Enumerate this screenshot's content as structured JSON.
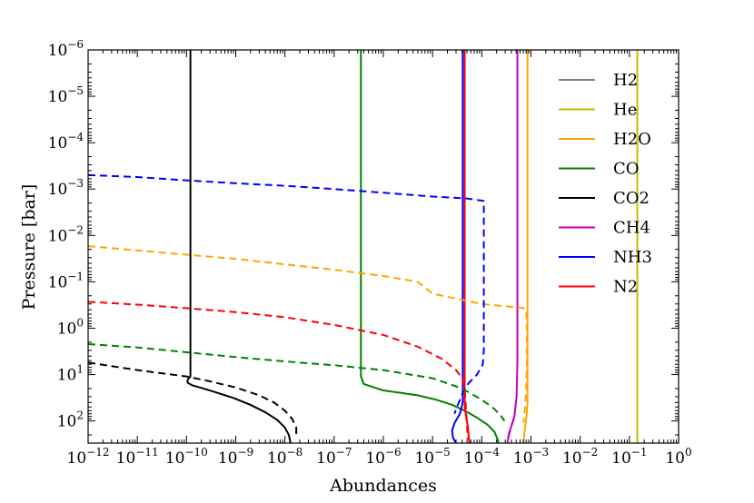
{
  "chart_data": {
    "type": "line",
    "xlabel": "Abundances",
    "ylabel": "Pressure [bar]",
    "x_scale": "log",
    "y_scale": "log",
    "y_inverted": true,
    "xlim": [
      1e-12,
      1
    ],
    "ylim": [
      1e-06,
      300
    ],
    "x_ticks": [
      {
        "base": "10",
        "exp": "−12",
        "value": 1e-12
      },
      {
        "base": "10",
        "exp": "−11",
        "value": 1e-11
      },
      {
        "base": "10",
        "exp": "−10",
        "value": 1e-10
      },
      {
        "base": "10",
        "exp": "−9",
        "value": 1e-09
      },
      {
        "base": "10",
        "exp": "−8",
        "value": 1e-08
      },
      {
        "base": "10",
        "exp": "−7",
        "value": 1e-07
      },
      {
        "base": "10",
        "exp": "−6",
        "value": 1e-06
      },
      {
        "base": "10",
        "exp": "−5",
        "value": 1e-05
      },
      {
        "base": "10",
        "exp": "−4",
        "value": 0.0001
      },
      {
        "base": "10",
        "exp": "−3",
        "value": 0.001
      },
      {
        "base": "10",
        "exp": "−2",
        "value": 0.01
      },
      {
        "base": "10",
        "exp": "−1",
        "value": 0.1
      },
      {
        "base": "10",
        "exp": "0",
        "value": 1
      }
    ],
    "y_ticks": [
      {
        "base": "10",
        "exp": "−6",
        "value": 1e-06
      },
      {
        "base": "10",
        "exp": "−5",
        "value": 1e-05
      },
      {
        "base": "10",
        "exp": "−4",
        "value": 0.0001
      },
      {
        "base": "10",
        "exp": "−3",
        "value": 0.001
      },
      {
        "base": "10",
        "exp": "−2",
        "value": 0.01
      },
      {
        "base": "10",
        "exp": "−1",
        "value": 0.1
      },
      {
        "base": "10",
        "exp": "0",
        "value": 1
      },
      {
        "base": "10",
        "exp": "1",
        "value": 10
      },
      {
        "base": "10",
        "exp": "2",
        "value": 100
      }
    ],
    "legend_position": "upper-right",
    "series": [
      {
        "name": "H2",
        "color": "#808080",
        "style": "solid",
        "in_legend": true,
        "points": []
      },
      {
        "name": "He",
        "color": "#bfbf00",
        "style": "solid",
        "in_legend": true,
        "points": [
          [
            0.145,
            1e-06
          ],
          [
            0.145,
            300
          ]
        ]
      },
      {
        "name": "H2O",
        "color": "#ffa500",
        "style": "solid",
        "in_legend": true,
        "points": [
          [
            0.00085,
            1e-06
          ],
          [
            0.00085,
            40
          ],
          [
            0.00082,
            70
          ],
          [
            0.00075,
            150
          ],
          [
            0.0007,
            300
          ]
        ]
      },
      {
        "name": "CO",
        "color": "#008000",
        "style": "solid",
        "in_legend": true,
        "points": [
          [
            3.5e-07,
            1e-06
          ],
          [
            3.5e-07,
            11
          ],
          [
            4e-07,
            16
          ],
          [
            1e-06,
            22
          ],
          [
            5e-06,
            28
          ],
          [
            1.2e-05,
            35
          ],
          [
            2.5e-05,
            45
          ],
          [
            4.5e-05,
            60
          ],
          [
            8e-05,
            85
          ],
          [
            0.00013,
            120
          ],
          [
            0.00018,
            170
          ],
          [
            0.00021,
            250
          ],
          [
            0.00022,
            300
          ]
        ]
      },
      {
        "name": "CO2",
        "color": "#000000",
        "style": "solid",
        "in_legend": true,
        "points": [
          [
            1.2e-10,
            1e-06
          ],
          [
            1.2e-10,
            11
          ],
          [
            1.05e-10,
            13
          ],
          [
            1.05e-10,
            15
          ],
          [
            1.3e-10,
            17
          ],
          [
            3e-10,
            22
          ],
          [
            9e-10,
            32
          ],
          [
            2e-09,
            45
          ],
          [
            4e-09,
            65
          ],
          [
            7e-09,
            95
          ],
          [
            1e-08,
            140
          ],
          [
            1.2e-08,
            200
          ],
          [
            1.3e-08,
            300
          ]
        ]
      },
      {
        "name": "CH4",
        "color": "#bf00bf",
        "style": "solid",
        "in_legend": true,
        "points": [
          [
            0.00053,
            1e-06
          ],
          [
            0.00053,
            5
          ],
          [
            0.00051,
            30
          ],
          [
            0.00046,
            80
          ],
          [
            0.00039,
            140
          ],
          [
            0.00035,
            220
          ],
          [
            0.00033,
            300
          ]
        ]
      },
      {
        "name": "NH3",
        "color": "#0000ff",
        "style": "solid",
        "in_legend": true,
        "points": [
          [
            4.1e-05,
            1e-06
          ],
          [
            4.1e-05,
            40
          ],
          [
            3.6e-05,
            70
          ],
          [
            2.8e-05,
            110
          ],
          [
            2.5e-05,
            160
          ],
          [
            2.6e-05,
            230
          ],
          [
            3e-05,
            300
          ]
        ]
      },
      {
        "name": "N2",
        "color": "#ff0000",
        "style": "solid",
        "in_legend": true,
        "points": [
          [
            4.5e-05,
            1e-06
          ],
          [
            4.5e-05,
            50
          ],
          [
            4.8e-05,
            80
          ],
          [
            5.2e-05,
            130
          ],
          [
            5.6e-05,
            300
          ]
        ]
      },
      {
        "name": "H2O (dashed)",
        "color": "#ffa500",
        "style": "dashed",
        "in_legend": false,
        "points": [
          [
            1e-12,
            0.017
          ],
          [
            1e-11,
            0.021
          ],
          [
            1e-10,
            0.026
          ],
          [
            1e-09,
            0.032
          ],
          [
            1e-08,
            0.042
          ],
          [
            1e-07,
            0.055
          ],
          [
            1e-06,
            0.075
          ],
          [
            5e-06,
            0.1
          ],
          [
            1e-05,
            0.18
          ],
          [
            0.0001,
            0.3
          ],
          [
            0.0006,
            0.36
          ],
          [
            0.0008,
            0.38
          ],
          [
            0.00082,
            1
          ],
          [
            0.00082,
            5
          ],
          [
            0.0008,
            20
          ],
          [
            0.00076,
            50
          ],
          [
            0.0007,
            110
          ]
        ]
      },
      {
        "name": "NH3 (dashed)",
        "color": "#0000ff",
        "style": "dashed",
        "in_legend": false,
        "points": [
          [
            1e-12,
            0.0005
          ],
          [
            1e-11,
            0.00055
          ],
          [
            1e-10,
            0.00065
          ],
          [
            1e-09,
            0.00075
          ],
          [
            1e-08,
            0.00085
          ],
          [
            1e-07,
            0.001
          ],
          [
            1e-06,
            0.0012
          ],
          [
            1e-05,
            0.00145
          ],
          [
            5e-05,
            0.0016
          ],
          [
            0.00011,
            0.0018
          ],
          [
            0.00011,
            0.5
          ],
          [
            0.00011,
            3
          ],
          [
            0.000105,
            6
          ],
          [
            8e-05,
            10
          ],
          [
            5.5e-05,
            15
          ],
          [
            4.3e-05,
            22
          ],
          [
            3.6e-05,
            35
          ],
          [
            3e-05,
            55
          ],
          [
            2.8e-05,
            70
          ]
        ]
      },
      {
        "name": "N2 (dashed)",
        "color": "#ff0000",
        "style": "dashed",
        "in_legend": false,
        "points": [
          [
            1e-12,
            0.27
          ],
          [
            1e-11,
            0.31
          ],
          [
            1e-10,
            0.37
          ],
          [
            1e-09,
            0.45
          ],
          [
            1e-08,
            0.58
          ],
          [
            1e-07,
            0.85
          ],
          [
            1e-06,
            1.4
          ],
          [
            5e-06,
            2.5
          ],
          [
            1.5e-05,
            4.5
          ],
          [
            3e-05,
            8
          ],
          [
            4e-05,
            12
          ],
          [
            4.5e-05,
            20
          ],
          [
            4.8e-05,
            60
          ],
          [
            5e-05,
            120
          ],
          [
            5.2e-05,
            250
          ]
        ]
      },
      {
        "name": "CO (dashed)",
        "color": "#008000",
        "style": "dashed",
        "in_legend": false,
        "points": [
          [
            1e-12,
            2.2
          ],
          [
            1e-11,
            2.6
          ],
          [
            1e-10,
            3.3
          ],
          [
            1e-09,
            4.2
          ],
          [
            1e-08,
            5.2
          ],
          [
            1e-07,
            6.3
          ],
          [
            1e-06,
            8
          ],
          [
            1e-05,
            12
          ],
          [
            4e-05,
            20
          ],
          [
            0.0001,
            35
          ],
          [
            0.00018,
            55
          ],
          [
            0.00025,
            80
          ],
          [
            0.00029,
            100
          ]
        ]
      },
      {
        "name": "CO2 (dashed)",
        "color": "#000000",
        "style": "dashed",
        "in_legend": false,
        "points": [
          [
            1e-12,
            5.5
          ],
          [
            1e-11,
            8
          ],
          [
            1e-10,
            11
          ],
          [
            3e-10,
            14
          ],
          [
            1e-09,
            19
          ],
          [
            3e-09,
            28
          ],
          [
            6e-09,
            40
          ],
          [
            1e-08,
            60
          ],
          [
            1.4e-08,
            90
          ],
          [
            1.7e-08,
            140
          ],
          [
            1.7e-08,
            220
          ]
        ]
      },
      {
        "name": "CH4 (dashed)",
        "color": "#bf00bf",
        "style": "dashed",
        "in_legend": false,
        "points": [
          [
            0.00045,
            90
          ],
          [
            0.0004,
            130
          ],
          [
            0.00036,
            180
          ],
          [
            0.00034,
            240
          ]
        ]
      }
    ]
  }
}
